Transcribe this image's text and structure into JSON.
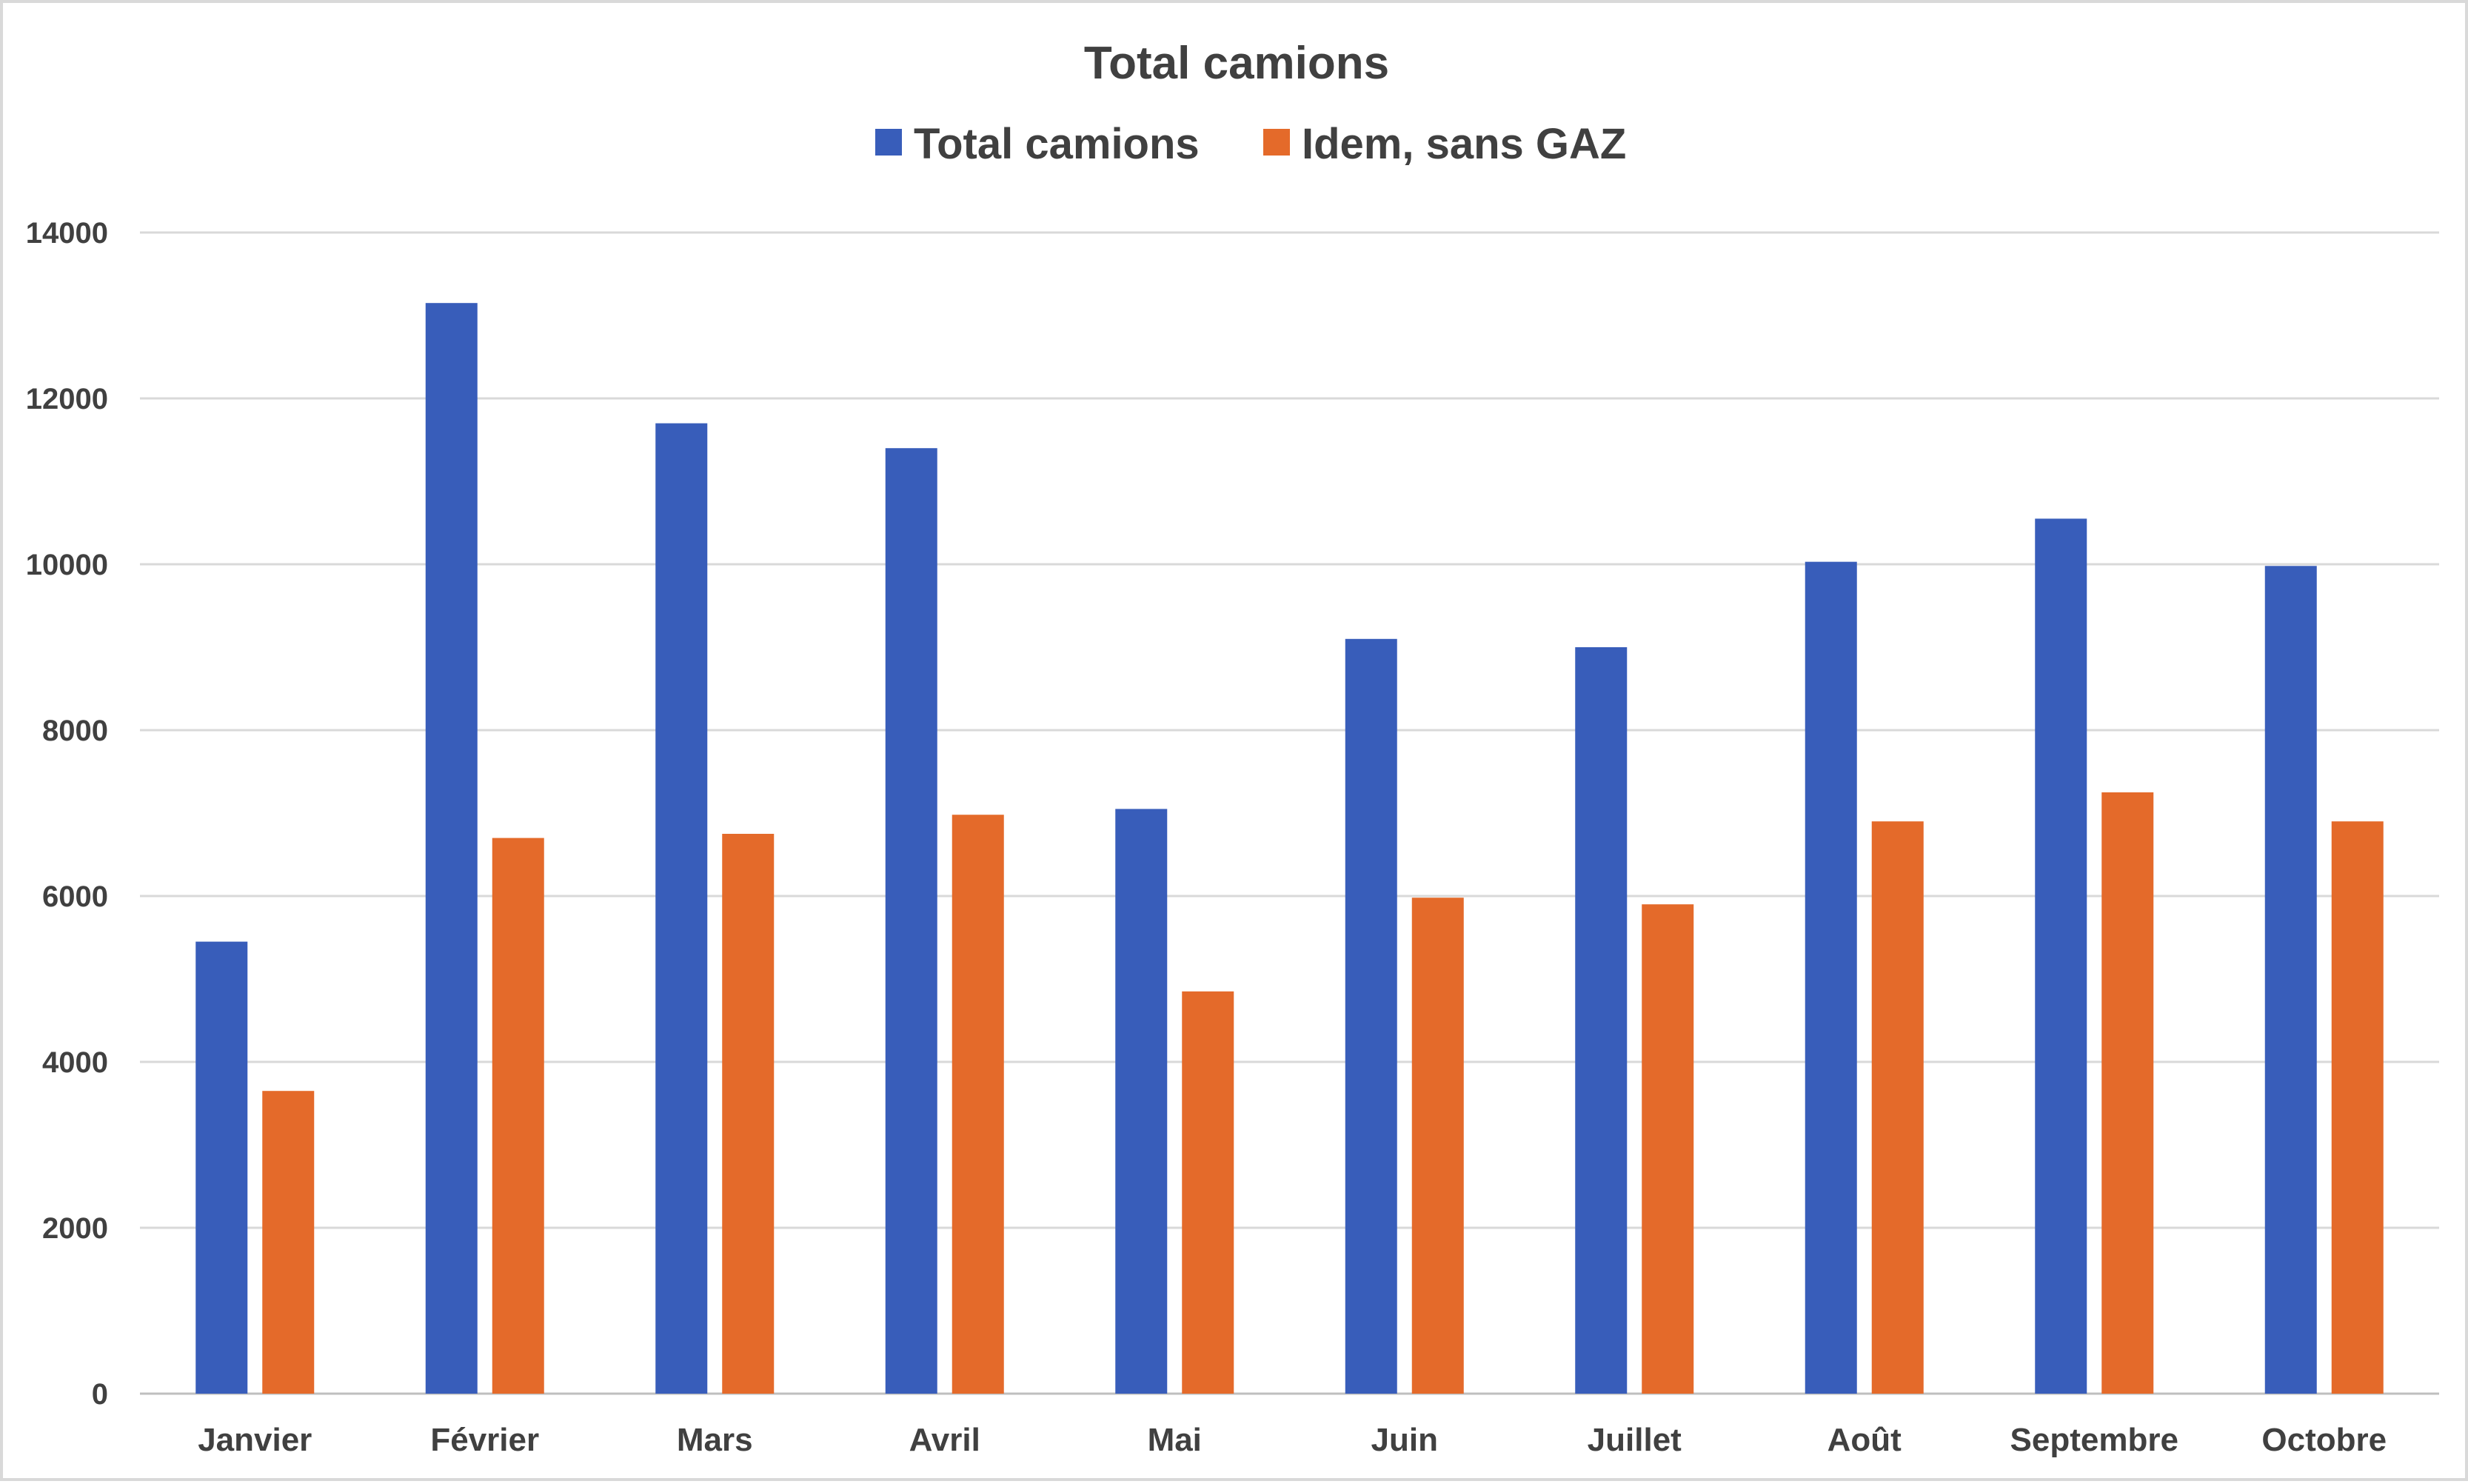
{
  "chart_data": {
    "type": "bar",
    "title": "Total camions",
    "categories": [
      "Janvier",
      "Février",
      "Mars",
      "Avril",
      "Mai",
      "Juin",
      "Juillet",
      "Août",
      "Septembre",
      "Octobre"
    ],
    "series": [
      {
        "name": "Total camions",
        "color": "#385dba",
        "values": [
          5450,
          13150,
          11700,
          11400,
          7050,
          9100,
          9000,
          10030,
          10550,
          9980
        ]
      },
      {
        "name": "Idem, sans GAZ",
        "color": "#e46a2a",
        "values": [
          3650,
          6700,
          6750,
          6980,
          4850,
          5980,
          5900,
          6900,
          7250,
          6900
        ]
      }
    ],
    "xlabel": "",
    "ylabel": "",
    "ylim": [
      0,
      14000
    ],
    "yticks": [
      0,
      2000,
      4000,
      6000,
      8000,
      10000,
      12000,
      14000
    ],
    "grid": true,
    "legend": "top"
  }
}
